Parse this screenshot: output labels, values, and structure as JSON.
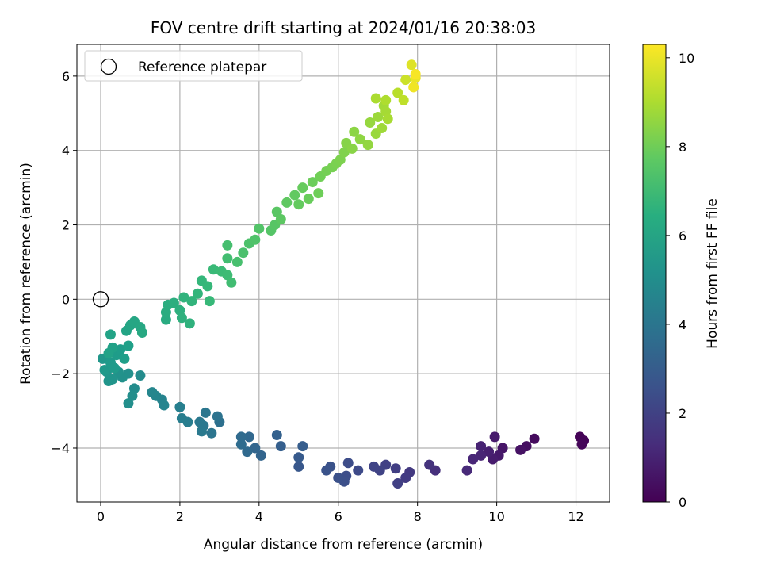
{
  "chart_data": {
    "type": "scatter",
    "title": "FOV centre drift starting at 2024/01/16 20:38:03",
    "xlabel": "Angular distance from reference (arcmin)",
    "ylabel": "Rotation from reference (arcmin)",
    "xlim": [
      -0.6,
      12.85
    ],
    "ylim": [
      -5.45,
      6.85
    ],
    "xticks": [
      0,
      2,
      4,
      6,
      8,
      10,
      12
    ],
    "yticks": [
      -4,
      -2,
      0,
      2,
      4,
      6
    ],
    "grid": true,
    "colorbar": {
      "label": "Hours from first FF file",
      "range": [
        0,
        10.3
      ],
      "ticks": [
        0,
        2,
        4,
        6,
        8,
        10
      ],
      "colormap": "viridis"
    },
    "legend": {
      "position": "top-left",
      "entries": [
        {
          "label": "Reference platepar",
          "marker": "open-circle"
        }
      ]
    },
    "reference_point": {
      "x": 0,
      "y": 0
    },
    "series": [
      {
        "color_by": "hours",
        "points": [
          {
            "x": 12.1,
            "y": -3.7,
            "c": 0.05
          },
          {
            "x": 12.2,
            "y": -3.8,
            "c": 0.1
          },
          {
            "x": 12.15,
            "y": -3.9,
            "c": 0.15
          },
          {
            "x": 10.95,
            "y": -3.75,
            "c": 0.3
          },
          {
            "x": 10.75,
            "y": -3.95,
            "c": 0.4
          },
          {
            "x": 10.6,
            "y": -4.05,
            "c": 0.5
          },
          {
            "x": 10.15,
            "y": -4.0,
            "c": 0.6
          },
          {
            "x": 10.05,
            "y": -4.2,
            "c": 0.7
          },
          {
            "x": 9.95,
            "y": -3.7,
            "c": 0.75
          },
          {
            "x": 9.9,
            "y": -4.3,
            "c": 0.8
          },
          {
            "x": 9.8,
            "y": -4.1,
            "c": 0.9
          },
          {
            "x": 9.6,
            "y": -3.95,
            "c": 1.0
          },
          {
            "x": 9.6,
            "y": -4.2,
            "c": 1.05
          },
          {
            "x": 9.4,
            "y": -4.3,
            "c": 1.1
          },
          {
            "x": 9.25,
            "y": -4.6,
            "c": 1.2
          },
          {
            "x": 8.45,
            "y": -4.6,
            "c": 1.4
          },
          {
            "x": 8.3,
            "y": -4.45,
            "c": 1.5
          },
          {
            "x": 7.8,
            "y": -4.65,
            "c": 1.7
          },
          {
            "x": 7.7,
            "y": -4.8,
            "c": 1.8
          },
          {
            "x": 7.45,
            "y": -4.55,
            "c": 1.9
          },
          {
            "x": 7.5,
            "y": -4.95,
            "c": 1.95
          },
          {
            "x": 7.2,
            "y": -4.45,
            "c": 2.0
          },
          {
            "x": 7.05,
            "y": -4.6,
            "c": 2.05
          },
          {
            "x": 6.9,
            "y": -4.5,
            "c": 2.1
          },
          {
            "x": 6.5,
            "y": -4.6,
            "c": 2.3
          },
          {
            "x": 6.25,
            "y": -4.4,
            "c": 2.4
          },
          {
            "x": 6.2,
            "y": -4.75,
            "c": 2.45
          },
          {
            "x": 6.15,
            "y": -4.9,
            "c": 2.5
          },
          {
            "x": 6.0,
            "y": -4.8,
            "c": 2.55
          },
          {
            "x": 5.8,
            "y": -4.5,
            "c": 2.6
          },
          {
            "x": 5.7,
            "y": -4.6,
            "c": 2.65
          },
          {
            "x": 5.0,
            "y": -4.5,
            "c": 2.8
          },
          {
            "x": 5.0,
            "y": -4.25,
            "c": 2.9
          },
          {
            "x": 5.1,
            "y": -3.95,
            "c": 3.0
          },
          {
            "x": 4.55,
            "y": -3.95,
            "c": 3.1
          },
          {
            "x": 4.45,
            "y": -3.65,
            "c": 3.15
          },
          {
            "x": 4.05,
            "y": -4.2,
            "c": 3.3
          },
          {
            "x": 3.9,
            "y": -4.0,
            "c": 3.35
          },
          {
            "x": 3.75,
            "y": -3.7,
            "c": 3.45
          },
          {
            "x": 3.7,
            "y": -4.1,
            "c": 3.5
          },
          {
            "x": 3.55,
            "y": -3.7,
            "c": 3.55
          },
          {
            "x": 3.55,
            "y": -3.9,
            "c": 3.6
          },
          {
            "x": 3.0,
            "y": -3.3,
            "c": 3.8
          },
          {
            "x": 2.95,
            "y": -3.15,
            "c": 3.9
          },
          {
            "x": 2.8,
            "y": -3.6,
            "c": 4.0
          },
          {
            "x": 2.65,
            "y": -3.05,
            "c": 4.05
          },
          {
            "x": 2.6,
            "y": -3.4,
            "c": 4.1
          },
          {
            "x": 2.5,
            "y": -3.3,
            "c": 4.15
          },
          {
            "x": 2.55,
            "y": -3.55,
            "c": 4.2
          },
          {
            "x": 2.2,
            "y": -3.3,
            "c": 4.35
          },
          {
            "x": 2.05,
            "y": -3.2,
            "c": 4.4
          },
          {
            "x": 2.0,
            "y": -2.9,
            "c": 4.45
          },
          {
            "x": 1.55,
            "y": -2.7,
            "c": 4.6
          },
          {
            "x": 1.6,
            "y": -2.85,
            "c": 4.65
          },
          {
            "x": 1.4,
            "y": -2.6,
            "c": 4.7
          },
          {
            "x": 1.3,
            "y": -2.5,
            "c": 4.75
          },
          {
            "x": 1.0,
            "y": -2.05,
            "c": 4.95
          },
          {
            "x": 0.85,
            "y": -2.4,
            "c": 5.0
          },
          {
            "x": 0.8,
            "y": -2.6,
            "c": 5.05
          },
          {
            "x": 0.7,
            "y": -2.8,
            "c": 5.1
          },
          {
            "x": 0.7,
            "y": -2.0,
            "c": 5.15
          },
          {
            "x": 0.55,
            "y": -2.1,
            "c": 5.2
          },
          {
            "x": 0.45,
            "y": -1.95,
            "c": 5.25
          },
          {
            "x": 0.3,
            "y": -2.15,
            "c": 5.3
          },
          {
            "x": 0.2,
            "y": -2.2,
            "c": 5.35
          },
          {
            "x": 0.15,
            "y": -1.95,
            "c": 5.4
          },
          {
            "x": 0.05,
            "y": -1.6,
            "c": 5.45
          },
          {
            "x": 0.1,
            "y": -1.9,
            "c": 5.5
          },
          {
            "x": 0.25,
            "y": -1.7,
            "c": 5.55
          },
          {
            "x": 0.35,
            "y": -1.85,
            "c": 5.6
          },
          {
            "x": 0.4,
            "y": -1.5,
            "c": 5.65
          },
          {
            "x": 0.5,
            "y": -1.35,
            "c": 5.7
          },
          {
            "x": 0.6,
            "y": -1.6,
            "c": 5.75
          },
          {
            "x": 0.7,
            "y": -1.25,
            "c": 5.8
          },
          {
            "x": 0.3,
            "y": -1.3,
            "c": 5.85
          },
          {
            "x": 0.2,
            "y": -1.45,
            "c": 5.9
          },
          {
            "x": 0.25,
            "y": -0.95,
            "c": 5.95
          },
          {
            "x": 0.65,
            "y": -0.85,
            "c": 6.0
          },
          {
            "x": 0.75,
            "y": -0.7,
            "c": 6.05
          },
          {
            "x": 0.85,
            "y": -0.6,
            "c": 6.1
          },
          {
            "x": 1.0,
            "y": -0.75,
            "c": 6.15
          },
          {
            "x": 1.05,
            "y": -0.9,
            "c": 6.2
          },
          {
            "x": 1.65,
            "y": -0.55,
            "c": 6.3
          },
          {
            "x": 1.65,
            "y": -0.35,
            "c": 6.35
          },
          {
            "x": 1.7,
            "y": -0.15,
            "c": 6.4
          },
          {
            "x": 1.85,
            "y": -0.1,
            "c": 6.45
          },
          {
            "x": 2.0,
            "y": -0.3,
            "c": 6.5
          },
          {
            "x": 2.05,
            "y": -0.5,
            "c": 6.55
          },
          {
            "x": 2.25,
            "y": -0.65,
            "c": 6.6
          },
          {
            "x": 2.1,
            "y": 0.05,
            "c": 6.65
          },
          {
            "x": 2.3,
            "y": -0.05,
            "c": 6.7
          },
          {
            "x": 2.45,
            "y": 0.15,
            "c": 6.75
          },
          {
            "x": 2.55,
            "y": 0.5,
            "c": 6.8
          },
          {
            "x": 2.7,
            "y": 0.35,
            "c": 6.85
          },
          {
            "x": 2.75,
            "y": -0.05,
            "c": 6.9
          },
          {
            "x": 2.85,
            "y": 0.8,
            "c": 6.95
          },
          {
            "x": 3.05,
            "y": 0.75,
            "c": 7.0
          },
          {
            "x": 3.2,
            "y": 0.65,
            "c": 7.05
          },
          {
            "x": 3.3,
            "y": 0.45,
            "c": 7.1
          },
          {
            "x": 3.2,
            "y": 1.1,
            "c": 7.15
          },
          {
            "x": 3.2,
            "y": 1.45,
            "c": 7.2
          },
          {
            "x": 3.45,
            "y": 1.0,
            "c": 7.25
          },
          {
            "x": 3.6,
            "y": 1.25,
            "c": 7.3
          },
          {
            "x": 3.75,
            "y": 1.5,
            "c": 7.35
          },
          {
            "x": 3.9,
            "y": 1.6,
            "c": 7.4
          },
          {
            "x": 4.0,
            "y": 1.9,
            "c": 7.45
          },
          {
            "x": 4.3,
            "y": 1.85,
            "c": 7.5
          },
          {
            "x": 4.4,
            "y": 2.0,
            "c": 7.55
          },
          {
            "x": 4.45,
            "y": 2.35,
            "c": 7.6
          },
          {
            "x": 4.55,
            "y": 2.15,
            "c": 7.65
          },
          {
            "x": 4.7,
            "y": 2.6,
            "c": 7.7
          },
          {
            "x": 4.9,
            "y": 2.8,
            "c": 7.75
          },
          {
            "x": 5.0,
            "y": 2.55,
            "c": 7.8
          },
          {
            "x": 5.1,
            "y": 3.0,
            "c": 7.85
          },
          {
            "x": 5.25,
            "y": 2.7,
            "c": 7.9
          },
          {
            "x": 5.35,
            "y": 3.15,
            "c": 7.95
          },
          {
            "x": 5.5,
            "y": 2.85,
            "c": 8.0
          },
          {
            "x": 5.55,
            "y": 3.3,
            "c": 8.05
          },
          {
            "x": 5.7,
            "y": 3.45,
            "c": 8.1
          },
          {
            "x": 5.85,
            "y": 3.55,
            "c": 8.15
          },
          {
            "x": 5.95,
            "y": 3.65,
            "c": 8.2
          },
          {
            "x": 6.05,
            "y": 3.75,
            "c": 8.25
          },
          {
            "x": 6.15,
            "y": 3.95,
            "c": 8.3
          },
          {
            "x": 6.2,
            "y": 4.2,
            "c": 8.4
          },
          {
            "x": 6.35,
            "y": 4.05,
            "c": 8.45
          },
          {
            "x": 6.4,
            "y": 4.5,
            "c": 8.5
          },
          {
            "x": 6.55,
            "y": 4.3,
            "c": 8.55
          },
          {
            "x": 6.75,
            "y": 4.15,
            "c": 8.6
          },
          {
            "x": 6.8,
            "y": 4.75,
            "c": 8.65
          },
          {
            "x": 6.95,
            "y": 4.45,
            "c": 8.7
          },
          {
            "x": 7.0,
            "y": 4.9,
            "c": 8.75
          },
          {
            "x": 7.1,
            "y": 4.6,
            "c": 8.8
          },
          {
            "x": 7.15,
            "y": 5.2,
            "c": 8.85
          },
          {
            "x": 7.2,
            "y": 5.05,
            "c": 8.9
          },
          {
            "x": 7.25,
            "y": 4.85,
            "c": 8.95
          },
          {
            "x": 6.95,
            "y": 5.4,
            "c": 9.0
          },
          {
            "x": 7.2,
            "y": 5.35,
            "c": 9.05
          },
          {
            "x": 7.5,
            "y": 5.55,
            "c": 9.2
          },
          {
            "x": 7.65,
            "y": 5.35,
            "c": 9.3
          },
          {
            "x": 7.7,
            "y": 5.9,
            "c": 9.5
          },
          {
            "x": 7.85,
            "y": 6.3,
            "c": 9.8
          },
          {
            "x": 7.95,
            "y": 5.95,
            "c": 10.0
          },
          {
            "x": 7.9,
            "y": 5.7,
            "c": 10.1
          },
          {
            "x": 7.95,
            "y": 6.05,
            "c": 10.2
          }
        ]
      }
    ]
  }
}
